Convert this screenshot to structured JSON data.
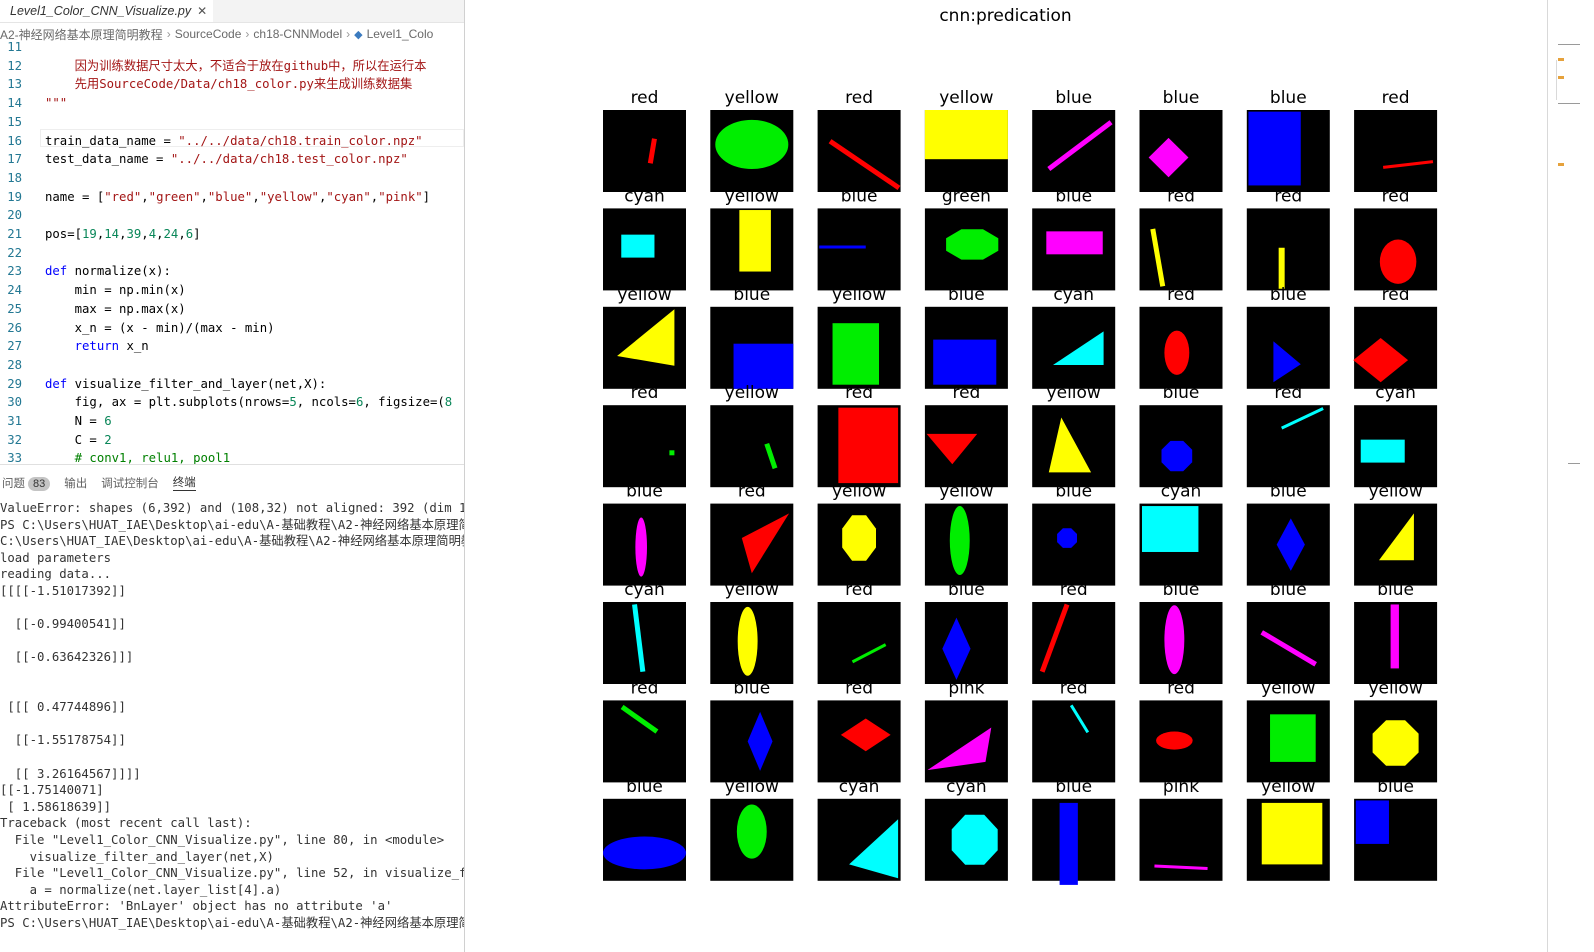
{
  "editor": {
    "tab_label": "Level1_Color_CNN_Visualize.py",
    "tab_close": "✕",
    "breadcrumb": [
      "A2-神经网络基本原理简明教程",
      "SourceCode",
      "ch18-CNNModel",
      "Level1_Colo"
    ],
    "lines": [
      {
        "num": "11",
        "html": ""
      },
      {
        "num": "12",
        "html": "    <span class='cn'>因为训练数据尺寸太大，不适合于放在github中，所以在运行本</span>"
      },
      {
        "num": "13",
        "html": "    <span class='cn'>先用SourceCode/Data/ch18_color.py来生成训练数据集</span>"
      },
      {
        "num": "14",
        "html": "<span class='s'>\"\"\"</span>"
      },
      {
        "num": "15",
        "html": ""
      },
      {
        "num": "16",
        "html": "train_data_name = <span class='s'>\"../../data/ch18.train_color.npz\"</span>"
      },
      {
        "num": "17",
        "html": "test_data_name = <span class='s'>\"../../data/ch18.test_color.npz\"</span>"
      },
      {
        "num": "18",
        "html": ""
      },
      {
        "num": "19",
        "html": "name = [<span class='s'>\"red\"</span>,<span class='s'>\"green\"</span>,<span class='s'>\"blue\"</span>,<span class='s'>\"yellow\"</span>,<span class='s'>\"cyan\"</span>,<span class='s'>\"pink\"</span>]"
      },
      {
        "num": "20",
        "html": ""
      },
      {
        "num": "21",
        "html": "pos=[<span class='n'>19</span>,<span class='n'>14</span>,<span class='n'>39</span>,<span class='n'>4</span>,<span class='n'>24</span>,<span class='n'>6</span>]"
      },
      {
        "num": "22",
        "html": ""
      },
      {
        "num": "23",
        "html": "<span class='k'>def</span> normalize(x):"
      },
      {
        "num": "24",
        "html": "    min = np.min(x)"
      },
      {
        "num": "25",
        "html": "    max = np.max(x)"
      },
      {
        "num": "26",
        "html": "    x_n = (x - min)/(max - min)"
      },
      {
        "num": "27",
        "html": "    <span class='k'>return</span> x_n"
      },
      {
        "num": "28",
        "html": ""
      },
      {
        "num": "29",
        "html": "<span class='k'>def</span> visualize_filter_and_layer(net,X):"
      },
      {
        "num": "30",
        "html": "    fig, ax = plt.subplots(nrows=<span class='n'>5</span>, ncols=<span class='n'>6</span>, figsize=(<span class='n'>8</span>"
      },
      {
        "num": "31",
        "html": "    N = <span class='n'>6</span>"
      },
      {
        "num": "32",
        "html": "    C = <span class='n'>2</span>"
      },
      {
        "num": "33",
        "html": "    <span class='c'># conv1, relu1, pool1</span>"
      }
    ]
  },
  "panel": {
    "tabs": [
      "问题",
      "输出",
      "调试控制台",
      "终端"
    ],
    "problem_count": "83",
    "active_tab": 3,
    "terminal_lines": [
      "ValueError: shapes (6,392) and (108,32) not aligned: 392 (dim 1) !=",
      "PS C:\\Users\\HUAT_IAE\\Desktop\\ai-edu\\A-基础教程\\A2-神经网络基本原理简明",
      "C:\\Users\\HUAT_IAE\\Desktop\\ai-edu\\A-基础教程\\A2-神经网络基本原理简明教",
      "load parameters",
      "reading data...",
      "[[[[-1.51017392]]",
      "",
      "  [[-0.99400541]]",
      "",
      "  [[-0.63642326]]]",
      "",
      "",
      " [[[ 0.47744896]]",
      "",
      "  [[-1.55178754]]",
      "",
      "  [[ 3.26164567]]]]",
      "[[-1.75140071]",
      " [ 1.58618639]]",
      "Traceback (most recent call last):",
      "  File \"Level1_Color_CNN_Visualize.py\", line 80, in <module>",
      "    visualize_filter_and_layer(net,X)",
      "  File \"Level1_Color_CNN_Visualize.py\", line 52, in visualize_filter",
      "    a = normalize(net.layer_list[4].a)",
      "AttributeError: 'BnLayer' object has no attribute 'a'",
      "PS C:\\Users\\HUAT_IAE\\Desktop\\ai-edu\\A-基础教程\\A2-神经网络基本原理简"
    ]
  },
  "figure": {
    "title": "cnn:predication",
    "colors": {
      "red": "#ff0000",
      "green": "#00ee00",
      "blue": "#0000ff",
      "yellow": "#ffff00",
      "cyan": "#00ffff",
      "pink": "#ff00ff"
    },
    "cells": [
      {
        "label": "red",
        "shape": "line",
        "color": "red"
      },
      {
        "label": "yellow",
        "shape": "ellipse",
        "color": "green"
      },
      {
        "label": "red",
        "shape": "line",
        "color": "red"
      },
      {
        "label": "yellow",
        "shape": "rect",
        "color": "yellow"
      },
      {
        "label": "blue",
        "shape": "line",
        "color": "pink"
      },
      {
        "label": "blue",
        "shape": "diamond",
        "color": "pink"
      },
      {
        "label": "blue",
        "shape": "rect",
        "color": "blue"
      },
      {
        "label": "red",
        "shape": "line",
        "color": "red"
      },
      {
        "label": "cyan",
        "shape": "rect",
        "color": "cyan"
      },
      {
        "label": "yellow",
        "shape": "rect",
        "color": "yellow"
      },
      {
        "label": "blue",
        "shape": "line",
        "color": "blue"
      },
      {
        "label": "green",
        "shape": "octagon",
        "color": "green"
      },
      {
        "label": "blue",
        "shape": "rect",
        "color": "pink"
      },
      {
        "label": "red",
        "shape": "line",
        "color": "yellow"
      },
      {
        "label": "red",
        "shape": "line",
        "color": "yellow"
      },
      {
        "label": "red",
        "shape": "ellipse",
        "color": "red"
      },
      {
        "label": "yellow",
        "shape": "triangle",
        "color": "yellow"
      },
      {
        "label": "blue",
        "shape": "rect",
        "color": "blue"
      },
      {
        "label": "yellow",
        "shape": "rect",
        "color": "green"
      },
      {
        "label": "blue",
        "shape": "rect",
        "color": "blue"
      },
      {
        "label": "cyan",
        "shape": "triangle",
        "color": "cyan"
      },
      {
        "label": "red",
        "shape": "ellipse",
        "color": "red"
      },
      {
        "label": "blue",
        "shape": "triangle",
        "color": "blue"
      },
      {
        "label": "red",
        "shape": "diamond",
        "color": "red"
      },
      {
        "label": "red",
        "shape": "dot",
        "color": "green"
      },
      {
        "label": "yellow",
        "shape": "line",
        "color": "green"
      },
      {
        "label": "red",
        "shape": "rect",
        "color": "red"
      },
      {
        "label": "red",
        "shape": "triangle",
        "color": "red"
      },
      {
        "label": "yellow",
        "shape": "triangle",
        "color": "yellow"
      },
      {
        "label": "blue",
        "shape": "octagon",
        "color": "blue"
      },
      {
        "label": "red",
        "shape": "line",
        "color": "cyan"
      },
      {
        "label": "cyan",
        "shape": "rect",
        "color": "cyan"
      },
      {
        "label": "blue",
        "shape": "ellipse",
        "color": "pink"
      },
      {
        "label": "red",
        "shape": "triangle",
        "color": "red"
      },
      {
        "label": "yellow",
        "shape": "octagon",
        "color": "yellow"
      },
      {
        "label": "yellow",
        "shape": "ellipse",
        "color": "green"
      },
      {
        "label": "blue",
        "shape": "octagon",
        "color": "blue"
      },
      {
        "label": "cyan",
        "shape": "rect",
        "color": "cyan"
      },
      {
        "label": "blue",
        "shape": "diamond",
        "color": "blue"
      },
      {
        "label": "yellow",
        "shape": "triangle",
        "color": "yellow"
      },
      {
        "label": "cyan",
        "shape": "line",
        "color": "cyan"
      },
      {
        "label": "yellow",
        "shape": "ellipse",
        "color": "yellow"
      },
      {
        "label": "red",
        "shape": "line",
        "color": "green"
      },
      {
        "label": "blue",
        "shape": "diamond",
        "color": "blue"
      },
      {
        "label": "red",
        "shape": "line",
        "color": "red"
      },
      {
        "label": "blue",
        "shape": "ellipse",
        "color": "pink"
      },
      {
        "label": "blue",
        "shape": "line",
        "color": "pink"
      },
      {
        "label": "blue",
        "shape": "rect",
        "color": "pink"
      },
      {
        "label": "red",
        "shape": "line",
        "color": "green"
      },
      {
        "label": "blue",
        "shape": "diamond",
        "color": "blue"
      },
      {
        "label": "red",
        "shape": "diamond",
        "color": "red"
      },
      {
        "label": "pink",
        "shape": "triangle",
        "color": "pink"
      },
      {
        "label": "red",
        "shape": "line",
        "color": "cyan"
      },
      {
        "label": "red",
        "shape": "ellipse",
        "color": "red"
      },
      {
        "label": "yellow",
        "shape": "rect",
        "color": "green"
      },
      {
        "label": "yellow",
        "shape": "octagon",
        "color": "yellow"
      },
      {
        "label": "blue",
        "shape": "ellipse",
        "color": "blue"
      },
      {
        "label": "yellow",
        "shape": "ellipse",
        "color": "green"
      },
      {
        "label": "cyan",
        "shape": "triangle",
        "color": "cyan"
      },
      {
        "label": "cyan",
        "shape": "octagon",
        "color": "cyan"
      },
      {
        "label": "blue",
        "shape": "rect",
        "color": "blue"
      },
      {
        "label": "pink",
        "shape": "line",
        "color": "pink"
      },
      {
        "label": "yellow",
        "shape": "rect",
        "color": "yellow"
      },
      {
        "label": "blue",
        "shape": "rect",
        "color": "blue"
      }
    ]
  }
}
